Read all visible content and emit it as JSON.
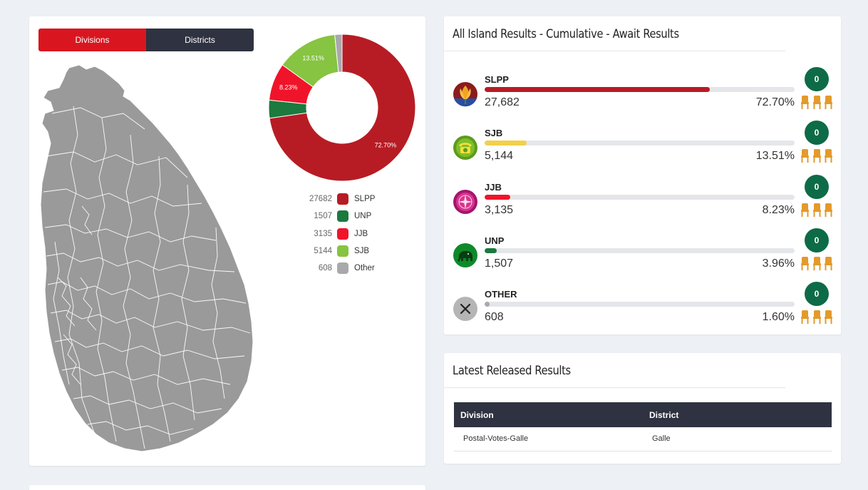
{
  "tabs": {
    "divisions_label": "Divisions",
    "districts_label": "Districts"
  },
  "donut": {
    "labels": {
      "slpp": "72.70%",
      "jjb": "8.23%",
      "sjb": "13.51%"
    },
    "slices": [
      {
        "name": "SLPP",
        "value": 27682,
        "color": "#b71c24"
      },
      {
        "name": "UNP",
        "value": 1507,
        "color": "#1b7a3e"
      },
      {
        "name": "JJB",
        "value": 3135,
        "color": "#f0142a"
      },
      {
        "name": "SJB",
        "value": 5144,
        "color": "#86c441"
      },
      {
        "name": "Other",
        "value": 608,
        "color": "#a7a9ac"
      }
    ]
  },
  "legend": [
    {
      "value": "27682",
      "name": "SLPP",
      "color": "#b71c24"
    },
    {
      "value": "1507",
      "name": "UNP",
      "color": "#1b7a3e"
    },
    {
      "value": "3135",
      "name": "JJB",
      "color": "#f0142a"
    },
    {
      "value": "5144",
      "name": "SJB",
      "color": "#86c441"
    },
    {
      "value": "608",
      "name": "Other",
      "color": "#a7a9ac"
    }
  ],
  "results": {
    "title": "All Island Results - Cumulative - Await Results",
    "parties": [
      {
        "name": "SLPP",
        "votes": "27,682",
        "pct": "72.70%",
        "share": 0.727,
        "seats": "0",
        "color": "#b71c24",
        "icon": "flower-icon"
      },
      {
        "name": "SJB",
        "votes": "5,144",
        "pct": "13.51%",
        "share": 0.1351,
        "seats": "0",
        "color": "#f2d04a",
        "icon": "telephone-icon"
      },
      {
        "name": "JJB",
        "votes": "3,135",
        "pct": "8.23%",
        "share": 0.0823,
        "seats": "0",
        "color": "#f0142a",
        "icon": "compass-icon"
      },
      {
        "name": "UNP",
        "votes": "1,507",
        "pct": "3.96%",
        "share": 0.0396,
        "seats": "0",
        "color": "#1b7a3e",
        "icon": "elephant-icon"
      },
      {
        "name": "OTHER",
        "votes": "608",
        "pct": "1.60%",
        "share": 0.016,
        "seats": "0",
        "color": "#a7a9ac",
        "icon": "close-icon"
      }
    ]
  },
  "latest": {
    "title": "Latest Released Results",
    "headers": {
      "division": "Division",
      "district": "District"
    },
    "rows": [
      {
        "division": "Postal-Votes-Galle",
        "district": "Galle"
      }
    ]
  }
}
